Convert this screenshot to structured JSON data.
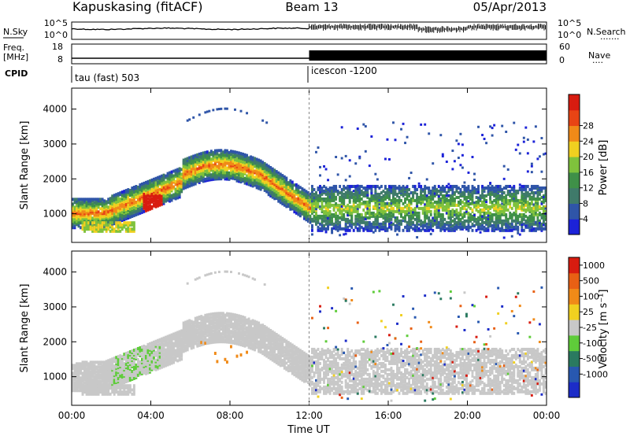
{
  "header": {
    "site": "Kapuskasing (fitACF)",
    "beam": "Beam 13",
    "date": "05/Apr/2013"
  },
  "noise_panel": {
    "left_label": "N.Sky",
    "right_label": "N.Search",
    "left_ticks": [
      "10^5",
      "10^0"
    ],
    "right_ticks": [
      "10^5",
      "10^0"
    ],
    "right_legend_dots": "......."
  },
  "freq_panel": {
    "left_label_line1": "Freq.",
    "left_label_line2": "[MHz]",
    "right_label": "Nave",
    "left_ticks": [
      "18",
      "8"
    ],
    "right_ticks": [
      "60",
      "0"
    ],
    "right_legend_dots": "...."
  },
  "cpid_panel": {
    "label": "CPID",
    "segments": [
      {
        "start_hour": 0,
        "text": "tau (fast) 503"
      },
      {
        "start_hour": 12,
        "text": "icescon -1200"
      }
    ]
  },
  "chart_data": [
    {
      "type": "heatmap",
      "parameter": "power",
      "ylabel": "Slant Range [km]",
      "xlim_hours": [
        0,
        24
      ],
      "ylim": [
        180,
        4600
      ],
      "yticks": [
        1000,
        2000,
        3000,
        4000
      ],
      "xticks_hours": [
        0,
        4,
        8,
        12,
        16,
        20,
        24
      ],
      "xtick_labels": [
        "00:00",
        "04:00",
        "08:00",
        "12:00",
        "16:00",
        "20:00",
        "00:00"
      ],
      "colorbar": {
        "label": "Power [dB]",
        "ticks": [
          "4",
          "8",
          "12",
          "16",
          "20",
          "24",
          "28"
        ],
        "colors": [
          "#1c22d8",
          "#2f55a8",
          "#3f7a6a",
          "#3f9048",
          "#7fc23c",
          "#f0d020",
          "#f08a18",
          "#e84414",
          "#d81c10"
        ]
      }
    },
    {
      "type": "heatmap",
      "parameter": "velocity",
      "ylabel": "Slant Range [km]",
      "xlabel": "Time UT",
      "xlim_hours": [
        0,
        24
      ],
      "ylim": [
        180,
        4600
      ],
      "yticks": [
        1000,
        2000,
        3000,
        4000
      ],
      "xticks_hours": [
        0,
        4,
        8,
        12,
        16,
        20,
        24
      ],
      "xtick_labels": [
        "00:00",
        "04:00",
        "08:00",
        "12:00",
        "16:00",
        "20:00",
        "00:00"
      ],
      "colorbar": {
        "label": "Velocity [m s⁻¹]",
        "ticks": [
          "1000",
          "500",
          "100",
          "25",
          "-25",
          "-100",
          "-500",
          "-1000"
        ],
        "colors": [
          "#1c2cc8",
          "#2858b0",
          "#2a7a60",
          "#5fcc3a",
          "#c8c8c8",
          "#f0d020",
          "#f08a18",
          "#e86014",
          "#d81c10"
        ]
      }
    }
  ]
}
